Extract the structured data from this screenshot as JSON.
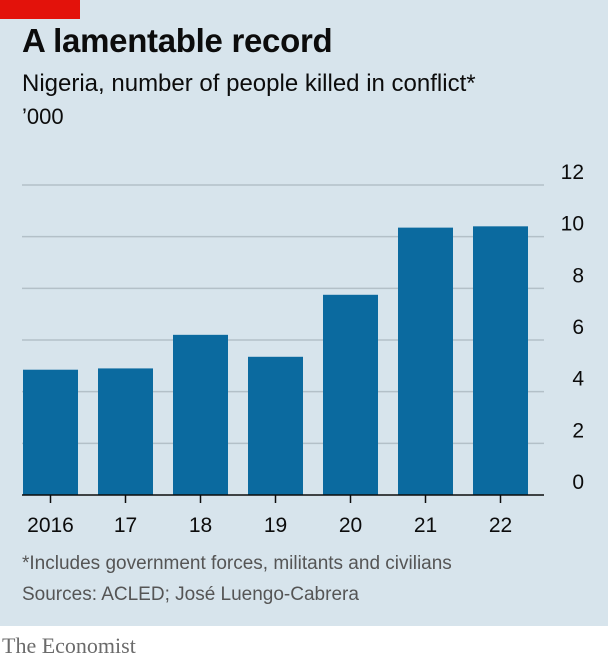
{
  "header": {
    "title": "A lamentable record",
    "subtitle": "Nigeria, number of people killed in conflict*",
    "unit": "’000"
  },
  "footer": {
    "footnote": "*Includes government forces, militants and civilians",
    "source": "Sources: ACLED; José Luengo-Cabrera",
    "brand": "The Economist"
  },
  "colors": {
    "bar": "#0b6a9f",
    "panel": "#d7e4ec",
    "accent": "#e3120b",
    "gridline": "#b3c0c8",
    "axis": "#0c0c0c"
  },
  "chart_data": {
    "type": "bar",
    "categories": [
      "2016",
      "17",
      "18",
      "19",
      "20",
      "21",
      "22"
    ],
    "values": [
      4.85,
      4.9,
      6.2,
      5.35,
      7.75,
      10.35,
      10.4
    ],
    "title": "A lamentable record",
    "subtitle": "Nigeria, number of people killed in conflict*",
    "ylabel": "’000",
    "ylim": [
      0,
      12
    ],
    "yticks": [
      0,
      2,
      4,
      6,
      8,
      10,
      12
    ],
    "ytick_labels": [
      "0",
      "2",
      "4",
      "6",
      "8",
      "10",
      "12"
    ],
    "grid": true,
    "y_axis_side": "right"
  }
}
